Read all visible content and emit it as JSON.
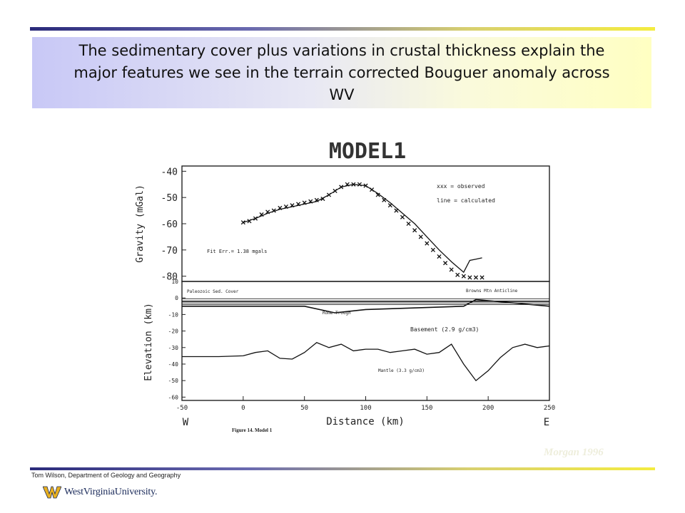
{
  "slide": {
    "title": "The sedimentary cover plus variations in crustal thickness explain the major features we see in the terrain corrected Bouguer anomaly across WV",
    "footer": "Tom Wilson, Department of Geology and Geography",
    "university": "WestVirginiaUniversity.",
    "credit": "Morgan 1996"
  },
  "chart_data": [
    {
      "type": "line",
      "title": "MODEL1",
      "xlabel": "Distance (km)",
      "ylabel": "Gravity (mGal)",
      "xlim": [
        -50,
        250
      ],
      "ylim": [
        -82,
        -38
      ],
      "yticks": [
        -40,
        -50,
        -60,
        -70,
        -80
      ],
      "legend": [
        "xxx = observed",
        "line = calculated"
      ],
      "legend_position": "top-right",
      "annotation": "Fit Err.= 1.38 mgals",
      "series": [
        {
          "name": "observed",
          "style": "x-markers",
          "x": [
            0,
            5,
            10,
            15,
            20,
            25,
            30,
            35,
            40,
            45,
            50,
            55,
            60,
            65,
            70,
            75,
            80,
            85,
            90,
            95,
            100,
            105,
            110,
            115,
            120,
            125,
            130,
            135,
            140,
            145,
            150,
            155,
            160,
            165,
            170,
            175,
            180,
            185,
            190,
            195
          ],
          "y": [
            -59.5,
            -59,
            -58,
            -56.5,
            -55.5,
            -55,
            -54,
            -53.5,
            -53,
            -52.5,
            -52,
            -51.5,
            -51,
            -50.5,
            -49,
            -47.5,
            -46,
            -45,
            -45,
            -45,
            -45.5,
            -47,
            -49,
            -51,
            -53,
            -55,
            -57.5,
            -60,
            -62.5,
            -65,
            -67.5,
            -70,
            -72.5,
            -75,
            -77.5,
            -79.5,
            -80,
            -80.5,
            -80.5,
            -80.5
          ]
        },
        {
          "name": "calculated",
          "style": "line",
          "x": [
            0,
            10,
            20,
            30,
            40,
            50,
            60,
            70,
            80,
            90,
            100,
            110,
            120,
            130,
            140,
            150,
            160,
            170,
            180,
            185,
            190,
            195
          ],
          "y": [
            -59.5,
            -58,
            -56,
            -54.5,
            -53.5,
            -52.5,
            -51.5,
            -49,
            -46,
            -45,
            -45.5,
            -48.5,
            -52,
            -56,
            -60,
            -65,
            -70,
            -74.5,
            -78.5,
            -74,
            -73.5,
            -73
          ]
        }
      ]
    },
    {
      "type": "line",
      "xlabel": "Distance (km)",
      "ylabel": "Elevation (km)",
      "xlim": [
        -50,
        250
      ],
      "ylim": [
        -62,
        10
      ],
      "yticks": [
        10,
        0,
        -10,
        -20,
        -30,
        -40,
        -50,
        -60
      ],
      "xticks": [
        -50,
        0,
        50,
        100,
        150,
        200,
        250
      ],
      "direction_labels": [
        "W",
        "E"
      ],
      "caption": "Figure 14. Model 1",
      "annotations": [
        "Paleozoic Sed. Cover",
        "Browns Mtn Anticline",
        "Rome Trough",
        "Basement (2.9 g/cm3)",
        "Mantle (3.3 g/cm3)"
      ],
      "series": [
        {
          "name": "Moho",
          "style": "line",
          "x": [
            -50,
            -20,
            0,
            10,
            20,
            30,
            40,
            50,
            60,
            70,
            80,
            90,
            100,
            110,
            120,
            130,
            140,
            150,
            160,
            170,
            180,
            190,
            200,
            210,
            220,
            230,
            240,
            250
          ],
          "y": [
            -35.5,
            -35.5,
            -35,
            -33,
            -32,
            -36.5,
            -37,
            -33,
            -27,
            -30,
            -28,
            -32,
            -31,
            -31,
            -33,
            -32,
            -31,
            -34,
            -33,
            -28,
            -40,
            -50,
            -44,
            -36,
            -30,
            -28,
            -30,
            -29
          ]
        },
        {
          "name": "sediment-top",
          "style": "line",
          "x": [
            -50,
            250
          ],
          "y": [
            -2,
            -2
          ]
        },
        {
          "name": "sediment-base",
          "style": "line",
          "x": [
            -50,
            50,
            75,
            100,
            180,
            190,
            250
          ],
          "y": [
            -5,
            -5,
            -9,
            -7,
            -5,
            -1,
            -5
          ]
        }
      ]
    }
  ]
}
